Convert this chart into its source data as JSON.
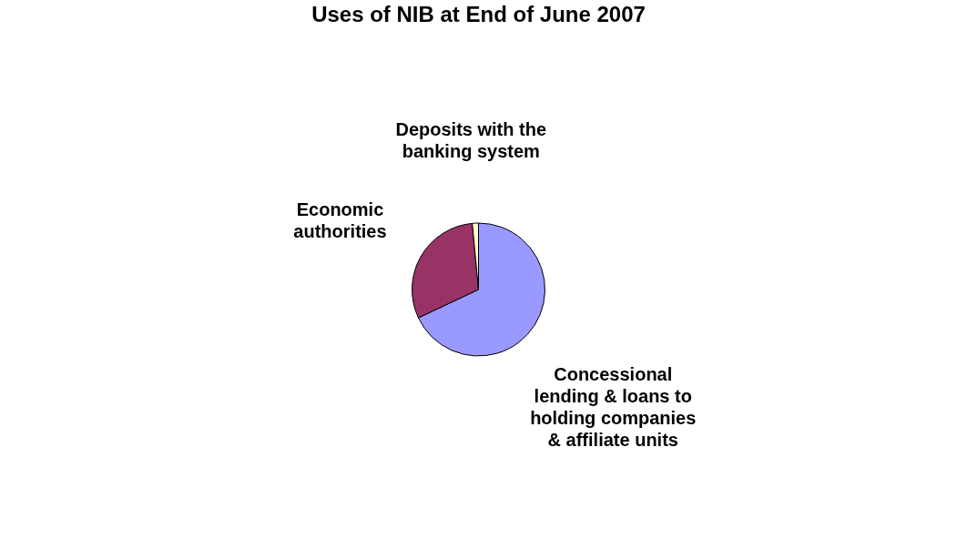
{
  "chart_data": {
    "type": "pie",
    "title": "Uses of NIB at End of June 2007",
    "categories": [
      "Concessional lending & loans to holding companies & affiliate units",
      "Economic authorities",
      "Deposits with the banking system"
    ],
    "values": [
      68,
      30.5,
      1.5
    ],
    "colors": [
      "#9999ff",
      "#993366",
      "#ffffcc"
    ],
    "legend": false
  }
}
